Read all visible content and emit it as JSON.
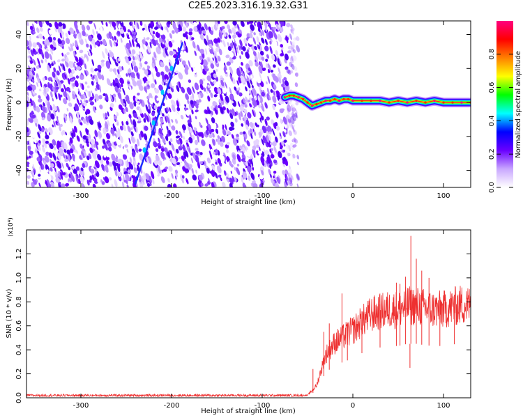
{
  "title": "C2E5.2023.316.19.32.G31",
  "chart_data": [
    {
      "type": "heatmap",
      "xlabel": "Height of straight line (km)",
      "ylabel": "Frequency (Hz)",
      "xlim": [
        -360,
        130
      ],
      "ylim": [
        -50,
        48
      ],
      "xticks": [
        -300,
        -200,
        -100,
        0,
        100
      ],
      "yticks": [
        -40,
        -20,
        0,
        20,
        40
      ],
      "colorbar": {
        "label": "Normalized spectral amplitude",
        "range": [
          0.0,
          1.0
        ],
        "ticks": [
          "0.0",
          "0.2",
          "0.4",
          "0.6",
          "0.8"
        ],
        "colors": [
          "#ffffff",
          "#c9a7ff",
          "#6a00ff",
          "#0000ff",
          "#00ffff",
          "#00ff00",
          "#ffff00",
          "#ff8000",
          "#ff0000",
          "#ff0080"
        ]
      },
      "noise_region_x": [
        -360,
        -65
      ],
      "diagonal_feature": {
        "x": [
          -240,
          -188
        ],
        "y": [
          -48,
          35
        ]
      },
      "signal_trace": {
        "x": [
          -75,
          -70,
          -65,
          -60,
          -55,
          -50,
          -45,
          -40,
          -35,
          -30,
          -25,
          -20,
          -15,
          -10,
          -5,
          0,
          10,
          20,
          30,
          40,
          50,
          60,
          70,
          80,
          90,
          100,
          110,
          120,
          130
        ],
        "y": [
          3,
          4,
          4,
          3,
          2,
          0,
          -2,
          -1,
          0,
          1,
          1,
          2,
          1,
          2,
          2,
          1,
          1,
          1,
          1,
          0,
          1,
          0,
          1,
          0,
          1,
          0,
          0,
          0,
          0
        ]
      }
    },
    {
      "type": "line",
      "xlabel": "Height of straight line (km)",
      "ylabel": "SNR (10 * v/v)",
      "multiplier": "(x10⁴)",
      "xlim": [
        -360,
        130
      ],
      "ylim": [
        0.0,
        1.4
      ],
      "xticks": [
        -300,
        -200,
        -100,
        0,
        100
      ],
      "yticks": [
        "0.0",
        "0.2",
        "0.4",
        "0.6",
        "0.8",
        "1.0",
        "1.2"
      ],
      "color": "#ee3030",
      "envelope": {
        "x": [
          -360,
          -200,
          -100,
          -50,
          -40,
          -30,
          -20,
          -10,
          0,
          10,
          20,
          30,
          40,
          50,
          60,
          70,
          80,
          90,
          100,
          110,
          120,
          130
        ],
        "y": [
          0.02,
          0.02,
          0.02,
          0.02,
          0.1,
          0.35,
          0.45,
          0.5,
          0.55,
          0.62,
          0.68,
          0.7,
          0.72,
          0.72,
          0.75,
          0.75,
          0.73,
          0.72,
          0.72,
          0.74,
          0.76,
          0.75
        ]
      },
      "spikes": [
        {
          "x": -44,
          "y": 0.24
        },
        {
          "x": -32,
          "y": 0.55
        },
        {
          "x": -26,
          "y": 0.62
        },
        {
          "x": -12,
          "y": 0.87
        },
        {
          "x": -6,
          "y": 0.62
        },
        {
          "x": 10,
          "y": 0.72
        },
        {
          "x": 30,
          "y": 0.78
        },
        {
          "x": 48,
          "y": 0.96
        },
        {
          "x": 52,
          "y": 0.95
        },
        {
          "x": 58,
          "y": 1.01
        },
        {
          "x": 64,
          "y": 1.35
        },
        {
          "x": 70,
          "y": 1.16
        },
        {
          "x": 76,
          "y": 1.06
        },
        {
          "x": 84,
          "y": 1.0
        },
        {
          "x": 96,
          "y": 0.84
        },
        {
          "x": 60,
          "y": 0.45
        },
        {
          "x": 63,
          "y": 0.25
        },
        {
          "x": 112,
          "y": 0.86
        }
      ]
    }
  ]
}
